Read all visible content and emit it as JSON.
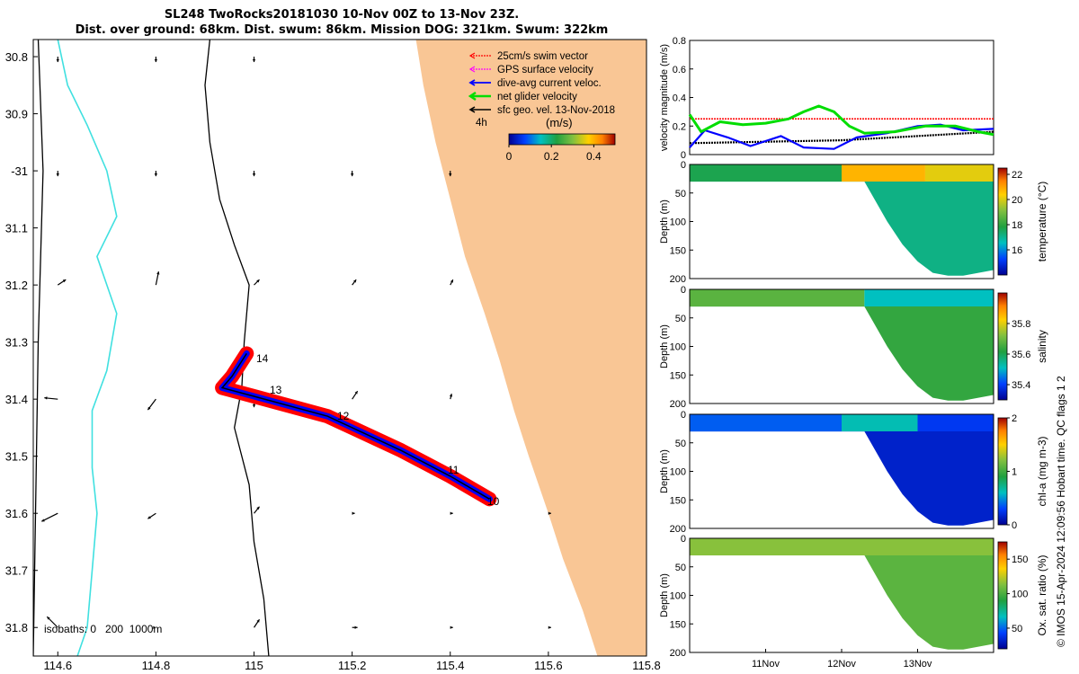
{
  "title": {
    "line1": "SL248 TwoRocks20181030 10-Nov 00Z to 13-Nov 23Z.",
    "line2": "Dist. over ground: 68km. Dist. swum: 86km. Mission DOG: 321km. Swum: 322km"
  },
  "colors": {
    "land": "#f9c695",
    "isobath_shallow": "#40e0e0",
    "isobath_other": "#000000",
    "swim": "#ff0000",
    "gps": "#ff00ff",
    "dive_avg": "#0000ff",
    "net": "#00dd00",
    "sfc_geo": "#000000"
  },
  "map": {
    "legend": [
      {
        "id": "swim",
        "label": "25cm/s swim vector"
      },
      {
        "id": "gps",
        "label": "GPS surface velocity"
      },
      {
        "id": "dive_avg",
        "label": "dive-avg current veloc."
      },
      {
        "id": "net",
        "label": "net glider velocity"
      },
      {
        "id": "sfc_geo",
        "label": "sfc geo. vel. 13-Nov-2018"
      }
    ],
    "tag_4h": "4h",
    "colorbar_unit": "(m/s)",
    "isobath_note": "isobaths: 0   200  1000m",
    "track_labels": [
      "14",
      "13",
      "12",
      "11",
      "10"
    ]
  },
  "chart_data": [
    {
      "type": "line",
      "name": "track map",
      "xlim": [
        114.55,
        115.8
      ],
      "ylim": [
        -31.85,
        -30.77
      ],
      "xticks": [
        114.6,
        114.8,
        115,
        115.2,
        115.4,
        115.6,
        115.8
      ],
      "xtick_labels": [
        "114.6",
        "114.8",
        "115",
        "115.2",
        "115.4",
        "115.6",
        "115.8"
      ],
      "ytick_values": [
        -30.8,
        -30.9,
        -31.0,
        -31.1,
        -31.2,
        -31.3,
        -31.4,
        -31.5,
        -31.6,
        -31.7,
        -31.8
      ],
      "ytick_labels": [
        "30.8",
        "30.9",
        "-31",
        "31.1",
        "31.2",
        "31.3",
        "31.4",
        "31.5",
        "31.6",
        "31.7",
        "31.8"
      ],
      "coast": [
        [
          115.33,
          -30.77
        ],
        [
          115.345,
          -30.85
        ],
        [
          115.37,
          -30.95
        ],
        [
          115.4,
          -31.05
        ],
        [
          115.43,
          -31.15
        ],
        [
          115.47,
          -31.25
        ],
        [
          115.5,
          -31.33
        ],
        [
          115.53,
          -31.42
        ],
        [
          115.56,
          -31.5
        ],
        [
          115.6,
          -31.6
        ],
        [
          115.63,
          -31.68
        ],
        [
          115.67,
          -31.77
        ],
        [
          115.7,
          -31.85
        ]
      ],
      "isobath_0": [
        [
          114.6,
          -30.77
        ],
        [
          114.62,
          -30.85
        ],
        [
          114.66,
          -30.92
        ],
        [
          114.7,
          -31.0
        ],
        [
          114.72,
          -31.08
        ],
        [
          114.68,
          -31.15
        ],
        [
          114.72,
          -31.25
        ],
        [
          114.7,
          -31.35
        ],
        [
          114.67,
          -31.42
        ],
        [
          114.67,
          -31.52
        ],
        [
          114.68,
          -31.6
        ],
        [
          114.67,
          -31.7
        ],
        [
          114.66,
          -31.8
        ],
        [
          114.64,
          -31.85
        ]
      ],
      "isobath_200": [
        [
          114.91,
          -30.77
        ],
        [
          114.9,
          -30.85
        ],
        [
          114.91,
          -30.95
        ],
        [
          114.93,
          -31.05
        ],
        [
          114.96,
          -31.13
        ],
        [
          114.99,
          -31.2
        ],
        [
          114.98,
          -31.3
        ],
        [
          114.975,
          -31.38
        ],
        [
          114.96,
          -31.45
        ],
        [
          114.99,
          -31.55
        ],
        [
          115.0,
          -31.65
        ],
        [
          115.02,
          -31.75
        ],
        [
          115.03,
          -31.85
        ]
      ],
      "isobath_1000": [
        [
          114.56,
          -30.77
        ],
        [
          114.57,
          -31.0
        ],
        [
          114.56,
          -31.3
        ],
        [
          114.55,
          -31.85
        ]
      ],
      "track": [
        [
          114.985,
          -31.32
        ],
        [
          114.955,
          -31.36
        ],
        [
          114.935,
          -31.38
        ],
        [
          115.0,
          -31.395
        ],
        [
          115.15,
          -31.43
        ],
        [
          115.3,
          -31.49
        ],
        [
          115.4,
          -31.535
        ],
        [
          115.48,
          -31.575
        ]
      ],
      "geo_arrows": [
        [
          114.6,
          -30.8,
          0,
          -0.2
        ],
        [
          114.8,
          -30.8,
          0,
          -0.2
        ],
        [
          115.0,
          -30.8,
          0,
          -0.2
        ],
        [
          114.6,
          -31.0,
          0,
          -0.2
        ],
        [
          114.8,
          -31.0,
          0,
          -0.2
        ],
        [
          115.0,
          -31.0,
          0,
          -0.2
        ],
        [
          115.2,
          -31.0,
          0,
          -0.2
        ],
        [
          115.4,
          -31.0,
          0,
          -0.2
        ],
        [
          114.6,
          -31.2,
          0.3,
          0.2
        ],
        [
          114.8,
          -31.2,
          0.1,
          0.5
        ],
        [
          115.0,
          -31.2,
          0.2,
          0.2
        ],
        [
          115.2,
          -31.2,
          0.15,
          0.2
        ],
        [
          115.4,
          -31.2,
          0.1,
          0.2
        ],
        [
          114.6,
          -31.4,
          -0.5,
          0.05
        ],
        [
          114.8,
          -31.4,
          -0.3,
          -0.4
        ],
        [
          115.0,
          -31.4,
          0,
          -0.3
        ],
        [
          115.2,
          -31.4,
          0.2,
          0.3
        ],
        [
          115.4,
          -31.4,
          0.05,
          0.2
        ],
        [
          114.6,
          -31.6,
          -0.6,
          -0.3
        ],
        [
          114.8,
          -31.6,
          -0.3,
          -0.2
        ],
        [
          115.0,
          -31.6,
          0.2,
          0.25
        ],
        [
          115.2,
          -31.6,
          0.1,
          0
        ],
        [
          115.4,
          -31.6,
          0.1,
          0
        ],
        [
          115.6,
          -31.6,
          0.1,
          0
        ],
        [
          114.6,
          -31.8,
          -0.4,
          0.4
        ],
        [
          114.8,
          -31.8,
          0,
          0
        ],
        [
          115.0,
          -31.8,
          0.2,
          0.3
        ],
        [
          115.2,
          -31.8,
          0.2,
          0
        ],
        [
          115.4,
          -31.8,
          0.1,
          0
        ],
        [
          115.6,
          -31.8,
          0.1,
          0
        ]
      ]
    },
    {
      "type": "line",
      "name": "velocity",
      "ylabel": "velocity magnitude (m/s)",
      "xlim": [
        0,
        4
      ],
      "ylim": [
        0,
        0.8
      ],
      "yticks": [
        0,
        0.2,
        0.4,
        0.6,
        0.8
      ],
      "ytick_labels": [
        "0",
        "0.2",
        "0.4",
        "0.6",
        "0.8"
      ],
      "series": [
        {
          "color": "swim",
          "x": [
            0,
            4
          ],
          "values": [
            0.25,
            0.25
          ]
        },
        {
          "color": "sfc_geo",
          "x": [
            0,
            1,
            2,
            3,
            4
          ],
          "values": [
            0.08,
            0.09,
            0.1,
            0.13,
            0.16
          ]
        },
        {
          "color": "dive_avg",
          "x": [
            0,
            0.2,
            0.5,
            0.8,
            1.2,
            1.5,
            1.9,
            2.2,
            2.6,
            3.0,
            3.3,
            3.6,
            4
          ],
          "values": [
            0.05,
            0.17,
            0.12,
            0.06,
            0.13,
            0.05,
            0.04,
            0.12,
            0.15,
            0.2,
            0.21,
            0.17,
            0.18
          ]
        },
        {
          "color": "net",
          "x": [
            0,
            0.15,
            0.4,
            0.7,
            1.0,
            1.3,
            1.5,
            1.7,
            1.9,
            2.1,
            2.3,
            2.7,
            3.1,
            3.5,
            3.8,
            4
          ],
          "values": [
            0.28,
            0.16,
            0.23,
            0.21,
            0.22,
            0.25,
            0.3,
            0.34,
            0.3,
            0.2,
            0.15,
            0.16,
            0.2,
            0.2,
            0.16,
            0.14
          ]
        }
      ]
    },
    {
      "type": "heatmap",
      "name": "temperature",
      "ylabel": "Depth (m)",
      "ylim": [
        200,
        0
      ],
      "yticks": [
        0,
        50,
        100,
        150,
        200
      ],
      "cbar_label": "temperature (°C)",
      "clim": [
        14,
        22.5
      ],
      "cticks": [
        16,
        18,
        20,
        22
      ],
      "cmap": [
        "#000090",
        "#0040ff",
        "#00c0c0",
        "#20a040",
        "#80c040",
        "#ffd000",
        "#ff8000",
        "#a00000"
      ],
      "x_deep": [
        0,
        2.0,
        2.3,
        2.6,
        2.8,
        3.0,
        3.2,
        3.4,
        3.6,
        3.8,
        4.0
      ],
      "bottom_depth": [
        30,
        30,
        30,
        100,
        140,
        170,
        190,
        195,
        195,
        190,
        185
      ],
      "fill": [
        {
          "x": [
            0,
            2.0
          ],
          "value": 17.5
        },
        {
          "x": [
            2.0,
            3.1
          ],
          "value": 20.5
        },
        {
          "x": [
            3.1,
            4.0
          ],
          "value": 19.8
        }
      ],
      "deep_value": 17.0
    },
    {
      "type": "heatmap",
      "name": "salinity",
      "ylabel": "Depth (m)",
      "ylim": [
        200,
        0
      ],
      "yticks": [
        0,
        50,
        100,
        150,
        200
      ],
      "cbar_label": "salinity",
      "clim": [
        35.3,
        36.0
      ],
      "cticks": [
        35.4,
        35.6,
        35.8
      ],
      "cmap": [
        "#000090",
        "#0040ff",
        "#00c0c0",
        "#20a040",
        "#80c040",
        "#ffd000",
        "#ff8000",
        "#a00000"
      ],
      "x_deep": [
        0,
        2.0,
        2.3,
        2.6,
        2.8,
        3.0,
        3.2,
        3.4,
        3.6,
        3.8,
        4.0
      ],
      "bottom_depth": [
        30,
        30,
        30,
        100,
        140,
        170,
        190,
        195,
        195,
        190,
        185
      ],
      "fill": [
        {
          "x": [
            0,
            2.3
          ],
          "value": 35.66
        },
        {
          "x": [
            2.3,
            4.0
          ],
          "value": 35.5
        }
      ],
      "deep_value": 35.62
    },
    {
      "type": "heatmap",
      "name": "chlorophyll",
      "ylabel": "Depth (m)",
      "ylim": [
        200,
        0
      ],
      "yticks": [
        0,
        50,
        100,
        150,
        200
      ],
      "cbar_label": "chl-a (mg m-3)",
      "clim": [
        0,
        2
      ],
      "cticks": [
        0,
        1,
        2
      ],
      "cmap": [
        "#000090",
        "#0040ff",
        "#00c0c0",
        "#20a040",
        "#80c040",
        "#ffd000",
        "#ff8000",
        "#a00000"
      ],
      "x_deep": [
        0,
        2.0,
        2.3,
        2.6,
        2.8,
        3.0,
        3.2,
        3.4,
        3.6,
        3.8,
        4.0
      ],
      "bottom_depth": [
        30,
        30,
        30,
        100,
        140,
        170,
        190,
        195,
        195,
        190,
        185
      ],
      "fill": [
        {
          "x": [
            0,
            2.0
          ],
          "value": 0.35
        },
        {
          "x": [
            2.0,
            3.0
          ],
          "value": 0.6
        },
        {
          "x": [
            3.0,
            4.0
          ],
          "value": 0.25
        }
      ],
      "deep_value": 0.15
    },
    {
      "type": "heatmap",
      "name": "oxygen",
      "ylabel": "Depth (m)",
      "ylim": [
        200,
        0
      ],
      "yticks": [
        0,
        50,
        100,
        150,
        200
      ],
      "cbar_label": "Ox. sat. ratio (%)",
      "clim": [
        20,
        175
      ],
      "cticks": [
        50,
        100,
        150
      ],
      "cmap": [
        "#000090",
        "#0040ff",
        "#00c0c0",
        "#20a040",
        "#80c040",
        "#ffd000",
        "#ff8000",
        "#a00000"
      ],
      "x_deep": [
        0,
        2.0,
        2.3,
        2.6,
        2.8,
        3.0,
        3.2,
        3.4,
        3.6,
        3.8,
        4.0
      ],
      "bottom_depth": [
        30,
        30,
        30,
        100,
        140,
        170,
        190,
        195,
        195,
        190,
        185
      ],
      "fill": [
        {
          "x": [
            0,
            4.0
          ],
          "value": 110
        }
      ],
      "deep_value": 100
    }
  ],
  "section_xtick_labels": [
    "11Nov",
    "12Nov",
    "13Nov"
  ],
  "credit": "© IMOS 15-Apr-2024 12:09:56 Hobart time. QC flags 1  2"
}
